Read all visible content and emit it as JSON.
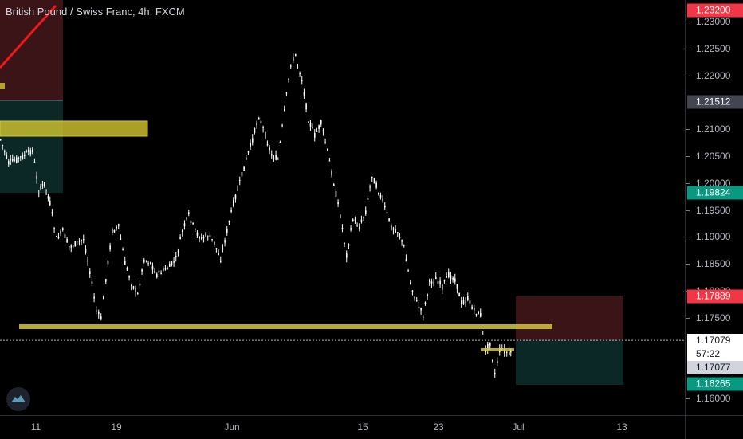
{
  "header": {
    "title": "British Pound / Swiss Franc, 4h, FXCM"
  },
  "price_axis": {
    "ticks": [
      "1.23000",
      "1.22500",
      "1.22000",
      "1.21000",
      "1.20500",
      "1.20000",
      "1.19500",
      "1.19000",
      "1.18500",
      "1.18000",
      "1.17500",
      "1.16000"
    ],
    "tick_values": [
      1.23,
      1.225,
      1.22,
      1.21,
      1.205,
      1.2,
      1.195,
      1.19,
      1.185,
      1.18,
      1.175,
      1.16
    ]
  },
  "price_labels": [
    {
      "text": "1.23200",
      "value": 1.232,
      "color": "#f23645"
    },
    {
      "text": "1.21512",
      "value": 1.21512,
      "color": "#434651"
    },
    {
      "text": "1.19824",
      "value": 1.19824,
      "color": "#089981"
    },
    {
      "text": "1.17889",
      "value": 1.17889,
      "color": "#f23645"
    },
    {
      "text": "1.16265",
      "value": 1.16265,
      "color": "#089981"
    }
  ],
  "current_price": {
    "price": "1.17079",
    "countdown": "57:22",
    "last": "1.17077",
    "value": 1.17079
  },
  "time_axis": {
    "labels": [
      "11",
      "19",
      "Jun",
      "15",
      "23",
      "Jul",
      "13"
    ]
  },
  "colors": {
    "candle_up": "#ffffff",
    "candle_down": "#ffffff",
    "zone_yellow": "#d4c832",
    "loss_zone": "#3b1417",
    "profit_zone": "#0b2826",
    "trendline": "#f01818"
  },
  "logo": {
    "icon": "tradingview-cloud-icon"
  }
}
